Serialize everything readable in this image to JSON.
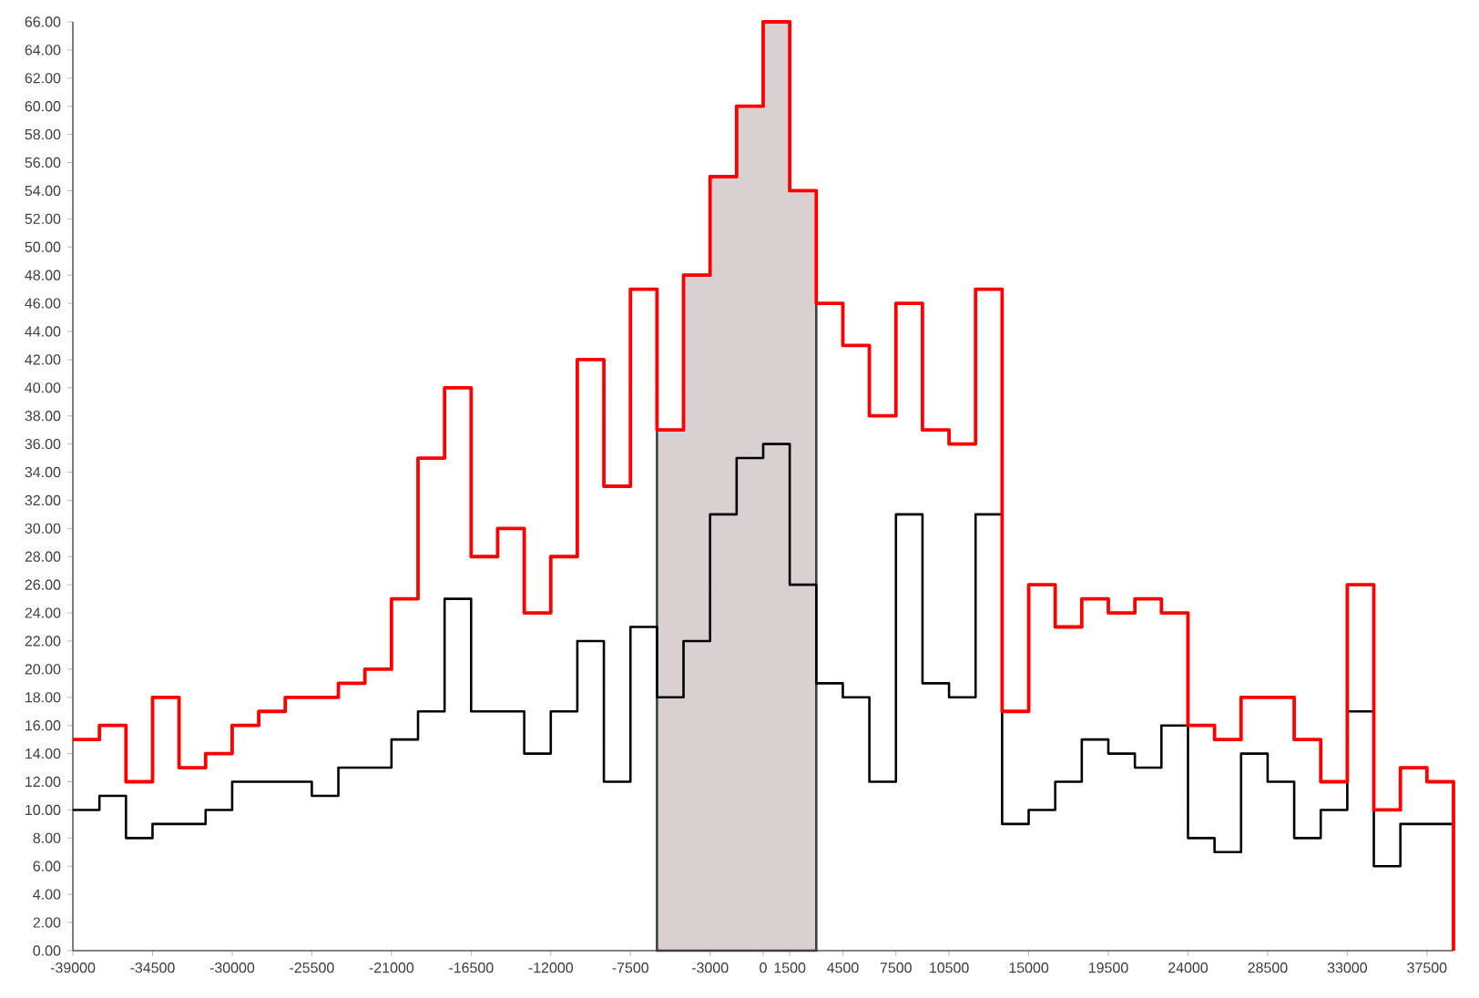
{
  "chart_data": {
    "type": "step",
    "x": [
      -39000,
      -37500,
      -36000,
      -34500,
      -33000,
      -31500,
      -30000,
      -28500,
      -27000,
      -25500,
      -24000,
      -22500,
      -21000,
      -19500,
      -18000,
      -16500,
      -15000,
      -13500,
      -12000,
      -10500,
      -9000,
      -7500,
      -6000,
      -4500,
      -3000,
      -1500,
      0,
      1500,
      3000,
      4500,
      6000,
      7500,
      9000,
      10500,
      12000,
      13500,
      15000,
      16500,
      18000,
      19500,
      21000,
      22500,
      24000,
      25500,
      27000,
      28500,
      30000,
      31500,
      33000,
      34500,
      36000,
      37500,
      39000
    ],
    "series": [
      {
        "type": "area",
        "color": "#d9d1d1",
        "x": [
          -6000,
          -4500,
          -3000,
          -1500,
          0,
          1500,
          3000
        ],
        "values": [
          37,
          48,
          55,
          60,
          66,
          54,
          54
        ]
      },
      {
        "color": "#ff0000",
        "values": [
          15,
          16,
          12,
          18,
          13,
          14,
          16,
          17,
          18,
          18,
          19,
          20,
          25,
          35,
          40,
          28,
          30,
          24,
          28,
          42,
          33,
          47,
          37,
          48,
          55,
          60,
          66,
          54,
          46,
          43,
          38,
          46,
          37,
          36,
          47,
          17,
          26,
          23,
          25,
          24,
          25,
          24,
          16,
          15,
          18,
          18,
          15,
          12,
          26,
          10,
          13,
          12,
          0
        ]
      },
      {
        "color": "#000000",
        "values": [
          10,
          11,
          8,
          9,
          9,
          10,
          12,
          12,
          12,
          11,
          13,
          13,
          15,
          17,
          25,
          17,
          17,
          14,
          17,
          22,
          12,
          23,
          18,
          22,
          31,
          35,
          36,
          26,
          19,
          18,
          12,
          31,
          19,
          18,
          31,
          9,
          10,
          12,
          15,
          14,
          13,
          16,
          8,
          7,
          14,
          12,
          8,
          10,
          17,
          6,
          9,
          9,
          9
        ]
      }
    ],
    "xlim": [
      -39000,
      39000
    ],
    "ylim": [
      0,
      66
    ],
    "xticks": [
      -39000,
      -34500,
      -30000,
      -25500,
      -21000,
      -16500,
      -12000,
      -7500,
      -3000,
      0,
      1500,
      4500,
      7500,
      10500,
      15000,
      19500,
      24000,
      28500,
      33000,
      37500
    ],
    "yticks": [
      {
        "value": 0,
        "label": "0.00"
      },
      {
        "value": 2,
        "label": "2.00"
      },
      {
        "value": 4,
        "label": "4.00"
      },
      {
        "value": 6,
        "label": "6.00"
      },
      {
        "value": 8,
        "label": "8.00"
      },
      {
        "value": 10,
        "label": "10.00"
      },
      {
        "value": 12,
        "label": "12.00"
      },
      {
        "value": 14,
        "label": "14.00"
      },
      {
        "value": 16,
        "label": "16.00"
      },
      {
        "value": 18,
        "label": "18.00"
      },
      {
        "value": 20,
        "label": "20.00"
      },
      {
        "value": 22,
        "label": "22.00"
      },
      {
        "value": 24,
        "label": "24.00"
      },
      {
        "value": 26,
        "label": "26.00"
      },
      {
        "value": 28,
        "label": "28.00"
      },
      {
        "value": 30,
        "label": "30.00"
      },
      {
        "value": 32,
        "label": "32.00"
      },
      {
        "value": 34,
        "label": "34.00"
      },
      {
        "value": 36,
        "label": "36.00"
      },
      {
        "value": 38,
        "label": "38.00"
      },
      {
        "value": 40,
        "label": "40.00"
      },
      {
        "value": 42,
        "label": "42.00"
      },
      {
        "value": 44,
        "label": "44.00"
      },
      {
        "value": 46,
        "label": "46.00"
      },
      {
        "value": 48,
        "label": "48.00"
      },
      {
        "value": 50,
        "label": "50.00"
      },
      {
        "value": 52,
        "label": "52.00"
      },
      {
        "value": 54,
        "label": "54.00"
      },
      {
        "value": 56,
        "label": "56.00"
      },
      {
        "value": 58,
        "label": "58.00"
      },
      {
        "value": 60,
        "label": "60.00"
      },
      {
        "value": 62,
        "label": "62.00"
      },
      {
        "value": 64,
        "label": "64.00"
      },
      {
        "value": 66,
        "label": "66.00"
      }
    ],
    "grid": false,
    "marker": "none"
  }
}
